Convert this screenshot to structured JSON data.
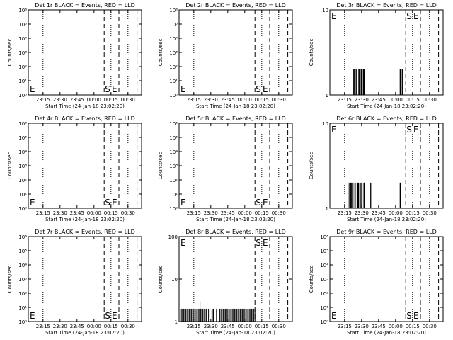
{
  "page": {
    "background": "#ffffff",
    "ink": "#000000"
  },
  "shared": {
    "xlabel": "Start Time (24-Jan-18 23:02:20)",
    "ylabel": "Counts/sec",
    "xticks": [
      "23:15",
      "23:30",
      "23:45",
      "00:00",
      "00:15",
      "00:30"
    ],
    "x_tick_minutes": [
      13,
      28,
      43,
      58,
      73,
      88
    ],
    "x_range_minutes": [
      0,
      100
    ],
    "dotted_lines_minutes": [
      13,
      73,
      88
    ],
    "dashed_lines_minutes": [
      67,
      80,
      96
    ],
    "marker_E": "E",
    "marker_S": "S",
    "marker_E2": "E"
  },
  "chart_data": [
    {
      "type": "bar",
      "title": "Det 1r BLACK = Events, RED = LLD",
      "yscale": "log",
      "ylim": [
        1,
        1000000
      ],
      "yticks": [
        "10⁶",
        "10⁵",
        "10⁴",
        "10³",
        "10²",
        "10¹",
        "10⁰"
      ],
      "ytick_values": [
        1000000,
        100000,
        10000,
        1000,
        100,
        10,
        1
      ],
      "E_at": "bottom",
      "SE_at": "bottom",
      "events": []
    },
    {
      "type": "bar",
      "title": "Det 2r BLACK = Events, RED = LLD",
      "yscale": "log",
      "ylim": [
        1,
        1000000
      ],
      "yticks": [
        "10⁶",
        "10⁵",
        "10⁴",
        "10³",
        "10²",
        "10¹",
        "10⁰"
      ],
      "ytick_values": [
        1000000,
        100000,
        10000,
        1000,
        100,
        10,
        1
      ],
      "E_at": "bottom",
      "SE_at": "bottom",
      "events": []
    },
    {
      "type": "bar",
      "title": "Det 3r BLACK = Events, RED = LLD",
      "yscale": "log",
      "ylim": [
        1,
        10
      ],
      "yticks": [
        "10",
        "1"
      ],
      "ytick_values": [
        10,
        1
      ],
      "E_at": "top",
      "SE_at": "top",
      "events": [
        [
          21,
          2
        ],
        [
          21.5,
          2
        ],
        [
          22.5,
          2
        ],
        [
          23.5,
          2
        ],
        [
          25.5,
          2
        ],
        [
          26,
          2
        ],
        [
          26.5,
          2
        ],
        [
          27.5,
          2
        ],
        [
          28,
          2
        ],
        [
          28.5,
          2
        ],
        [
          29.5,
          2
        ],
        [
          30,
          2
        ],
        [
          30.5,
          2
        ],
        [
          62,
          2
        ],
        [
          62.5,
          2
        ],
        [
          63,
          2
        ],
        [
          64,
          2
        ],
        [
          64.5,
          2
        ]
      ]
    },
    {
      "type": "bar",
      "title": "Det 4r BLACK = Events, RED = LLD",
      "yscale": "log",
      "ylim": [
        1,
        1000000
      ],
      "yticks": [
        "10⁶",
        "10⁵",
        "10⁴",
        "10³",
        "10²",
        "10¹",
        "10⁰"
      ],
      "ytick_values": [
        1000000,
        100000,
        10000,
        1000,
        100,
        10,
        1
      ],
      "E_at": "bottom",
      "SE_at": "bottom",
      "events": []
    },
    {
      "type": "bar",
      "title": "Det 5r BLACK = Events, RED = LLD",
      "yscale": "log",
      "ylim": [
        1,
        1000000
      ],
      "yticks": [
        "10⁶",
        "10⁵",
        "10⁴",
        "10³",
        "10²",
        "10¹",
        "10⁰"
      ],
      "ytick_values": [
        1000000,
        100000,
        10000,
        1000,
        100,
        10,
        1
      ],
      "E_at": "bottom",
      "SE_at": "bottom",
      "events": []
    },
    {
      "type": "bar",
      "title": "Det 6r BLACK = Events, RED = LLD",
      "yscale": "log",
      "ylim": [
        1,
        10
      ],
      "yticks": [
        "10",
        "1"
      ],
      "ytick_values": [
        10,
        1
      ],
      "E_at": "top",
      "SE_at": "top",
      "events": [
        [
          17,
          2
        ],
        [
          18,
          2
        ],
        [
          18.5,
          2
        ],
        [
          19,
          2
        ],
        [
          20.5,
          2
        ],
        [
          22,
          2
        ],
        [
          22.5,
          2
        ],
        [
          24,
          2
        ],
        [
          24.5,
          2
        ],
        [
          25,
          2
        ],
        [
          25.5,
          2
        ],
        [
          27,
          2
        ],
        [
          28,
          2
        ],
        [
          28.5,
          2
        ],
        [
          30,
          2
        ],
        [
          30.5,
          2
        ],
        [
          36,
          2
        ],
        [
          37,
          2
        ],
        [
          62,
          2
        ],
        [
          62.5,
          2
        ]
      ]
    },
    {
      "type": "bar",
      "title": "Det 7r BLACK = Events, RED = LLD",
      "yscale": "log",
      "ylim": [
        1,
        1000000
      ],
      "yticks": [
        "10⁶",
        "10⁵",
        "10⁴",
        "10³",
        "10²",
        "10¹",
        "10⁰"
      ],
      "ytick_values": [
        1000000,
        100000,
        10000,
        1000,
        100,
        10,
        1
      ],
      "E_at": "bottom",
      "SE_at": "bottom",
      "events": []
    },
    {
      "type": "bar",
      "title": "Det 8r BLACK = Events, RED = LLD",
      "yscale": "log",
      "ylim": [
        1,
        100
      ],
      "yticks": [
        "100",
        "10",
        "1"
      ],
      "ytick_values": [
        100,
        10,
        1
      ],
      "E_at": "top",
      "SE_at": "top",
      "events": [
        [
          2,
          2
        ],
        [
          3,
          2
        ],
        [
          4,
          2
        ],
        [
          5,
          2
        ],
        [
          6,
          2
        ],
        [
          7,
          2
        ],
        [
          8,
          2
        ],
        [
          9,
          2
        ],
        [
          10,
          2
        ],
        [
          11,
          2
        ],
        [
          12,
          2
        ],
        [
          13,
          2
        ],
        [
          14,
          2
        ],
        [
          15,
          2
        ],
        [
          16,
          2
        ],
        [
          17,
          2
        ],
        [
          18,
          2
        ],
        [
          18.5,
          3
        ],
        [
          19,
          2
        ],
        [
          20,
          2
        ],
        [
          21,
          2
        ],
        [
          22,
          2
        ],
        [
          23,
          2
        ],
        [
          24,
          2
        ],
        [
          26,
          2
        ],
        [
          29,
          2
        ],
        [
          30,
          2
        ],
        [
          30.5,
          2
        ],
        [
          33,
          2
        ],
        [
          36,
          2
        ],
        [
          37,
          2
        ],
        [
          38,
          2
        ],
        [
          39,
          2
        ],
        [
          40,
          2
        ],
        [
          41,
          2
        ],
        [
          42,
          2
        ],
        [
          43,
          2
        ],
        [
          44,
          2
        ],
        [
          45,
          2
        ],
        [
          46,
          2
        ],
        [
          47,
          2
        ],
        [
          48,
          2
        ],
        [
          49,
          2
        ],
        [
          50,
          2
        ],
        [
          51,
          2
        ],
        [
          52,
          2
        ],
        [
          53,
          2
        ],
        [
          54,
          2
        ],
        [
          55,
          2
        ],
        [
          56,
          2
        ],
        [
          57,
          2
        ],
        [
          58,
          2
        ],
        [
          59,
          2
        ],
        [
          60,
          2
        ],
        [
          61,
          2
        ],
        [
          62,
          2
        ],
        [
          63,
          2
        ],
        [
          64,
          2
        ],
        [
          65,
          2
        ],
        [
          66,
          2
        ],
        [
          67,
          2
        ]
      ]
    },
    {
      "type": "bar",
      "title": "Det 9r BLACK = Events, RED = LLD",
      "yscale": "log",
      "ylim": [
        1,
        1000000
      ],
      "yticks": [
        "10⁶",
        "10⁵",
        "10⁴",
        "10³",
        "10²",
        "10¹",
        "10⁰"
      ],
      "ytick_values": [
        1000000,
        100000,
        10000,
        1000,
        100,
        10,
        1
      ],
      "E_at": "bottom",
      "SE_at": "bottom",
      "events": []
    }
  ]
}
